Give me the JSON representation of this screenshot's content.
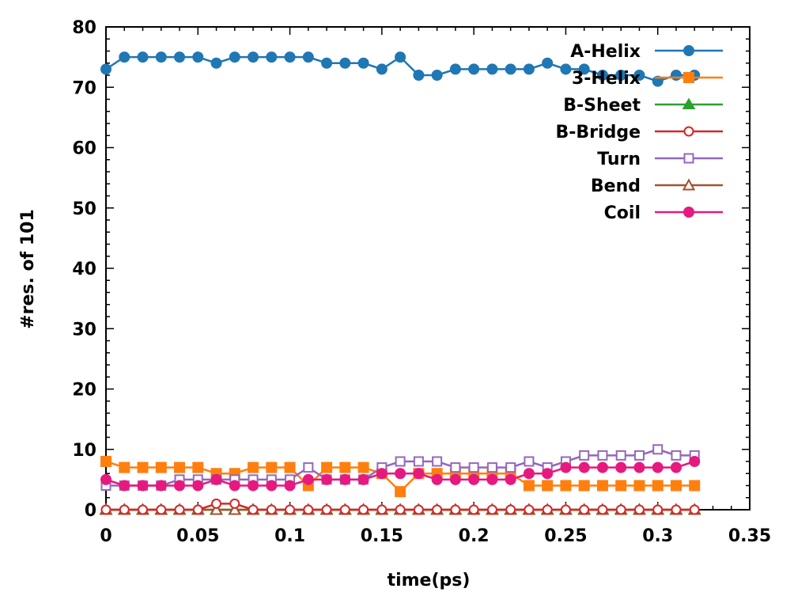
{
  "chart_data": {
    "type": "line",
    "title": "",
    "xlabel": "time(ps)",
    "ylabel": "#res. of 101",
    "xlim": [
      0,
      0.35
    ],
    "ylim": [
      0,
      80
    ],
    "x_ticks": [
      "0",
      "0.05",
      "0.1",
      "0.15",
      "0.2",
      "0.25",
      "0.3",
      "0.35"
    ],
    "y_ticks": [
      "0",
      "10",
      "20",
      "30",
      "40",
      "50",
      "60",
      "70",
      "80"
    ],
    "grid": false,
    "legend_position": "top-right",
    "x": [
      0,
      0.01,
      0.02,
      0.03,
      0.04,
      0.05,
      0.06,
      0.07,
      0.08,
      0.09,
      0.1,
      0.11,
      0.12,
      0.13,
      0.14,
      0.15,
      0.16,
      0.17,
      0.18,
      0.19,
      0.2,
      0.21,
      0.22,
      0.23,
      0.24,
      0.25,
      0.26,
      0.27,
      0.28,
      0.29,
      0.3,
      0.31,
      0.32
    ],
    "series": [
      {
        "name": "A-Helix",
        "color": "#1f77b4",
        "marker": "circle-filled",
        "values": [
          73,
          75,
          75,
          75,
          75,
          75,
          74,
          75,
          75,
          75,
          75,
          75,
          74,
          74,
          74,
          73,
          75,
          72,
          72,
          73,
          73,
          73,
          73,
          73,
          74,
          73,
          73,
          72,
          72,
          72,
          71,
          72,
          72
        ]
      },
      {
        "name": "3-Helix",
        "color": "#ff7f0e",
        "marker": "square-filled",
        "values": [
          8,
          7,
          7,
          7,
          7,
          7,
          6,
          6,
          7,
          7,
          7,
          4,
          7,
          7,
          7,
          6,
          3,
          6,
          6,
          6,
          6,
          6,
          6,
          4,
          4,
          4,
          4,
          4,
          4,
          4,
          4,
          4,
          4
        ]
      },
      {
        "name": "B-Sheet",
        "color": "#2ca02c",
        "marker": "triangle-filled",
        "values": [
          0,
          0,
          0,
          0,
          0,
          0,
          0,
          0,
          0,
          0,
          0,
          0,
          0,
          0,
          0,
          0,
          0,
          0,
          0,
          0,
          0,
          0,
          0,
          0,
          0,
          0,
          0,
          0,
          0,
          0,
          0,
          0,
          0
        ]
      },
      {
        "name": "B-Bridge",
        "color": "#d62728",
        "marker": "circle-open",
        "values": [
          0,
          0,
          0,
          0,
          0,
          0,
          1,
          1,
          0,
          0,
          0,
          0,
          0,
          0,
          0,
          0,
          0,
          0,
          0,
          0,
          0,
          0,
          0,
          0,
          0,
          0,
          0,
          0,
          0,
          0,
          0,
          0,
          0
        ]
      },
      {
        "name": "Turn",
        "color": "#9467bd",
        "marker": "square-open",
        "values": [
          4,
          4,
          4,
          4,
          5,
          5,
          5,
          5,
          5,
          5,
          5,
          7,
          5,
          5,
          5,
          7,
          8,
          8,
          8,
          7,
          7,
          7,
          7,
          8,
          7,
          8,
          9,
          9,
          9,
          9,
          10,
          9,
          9
        ]
      },
      {
        "name": "Bend",
        "color": "#a0522d",
        "marker": "triangle-open",
        "values": [
          0,
          0,
          0,
          0,
          0,
          0,
          0,
          0,
          0,
          0,
          0,
          0,
          0,
          0,
          0,
          0,
          0,
          0,
          0,
          0,
          0,
          0,
          0,
          0,
          0,
          0,
          0,
          0,
          0,
          0,
          0,
          0,
          0
        ]
      },
      {
        "name": "Coil",
        "color": "#e7197f",
        "marker": "circle-filled",
        "values": [
          5,
          4,
          4,
          4,
          4,
          4,
          5,
          4,
          4,
          4,
          4,
          5,
          5,
          5,
          5,
          6,
          6,
          6,
          5,
          5,
          5,
          5,
          5,
          6,
          6,
          7,
          7,
          7,
          7,
          7,
          7,
          7,
          8
        ]
      }
    ]
  }
}
